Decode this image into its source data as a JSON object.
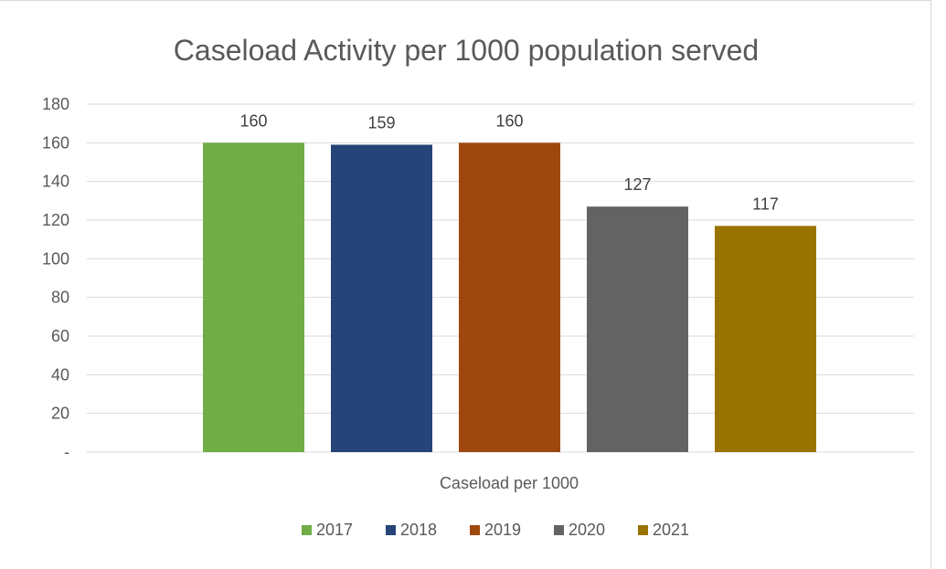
{
  "chart_data": {
    "type": "bar",
    "title": "Caseload Activity per 1000 population served",
    "categories": [
      "Caseload per 1000"
    ],
    "series": [
      {
        "name": "2017",
        "values": [
          160
        ],
        "label": "160",
        "color": "#70AD47"
      },
      {
        "name": "2018",
        "values": [
          159
        ],
        "label": "159",
        "color": "#264478"
      },
      {
        "name": "2019",
        "values": [
          160
        ],
        "label": "160",
        "color": "#9E480E"
      },
      {
        "name": "2020",
        "values": [
          127
        ],
        "label": "127",
        "color": "#636363"
      },
      {
        "name": "2021",
        "values": [
          117
        ],
        "label": "117",
        "color": "#997300"
      }
    ],
    "yticks": [
      {
        "value": 0,
        "label": "-"
      },
      {
        "value": 20,
        "label": "20"
      },
      {
        "value": 40,
        "label": "40"
      },
      {
        "value": 60,
        "label": "60"
      },
      {
        "value": 80,
        "label": "80"
      },
      {
        "value": 100,
        "label": "100"
      },
      {
        "value": 120,
        "label": "120"
      },
      {
        "value": 140,
        "label": "140"
      },
      {
        "value": 160,
        "label": "160"
      },
      {
        "value": 180,
        "label": "180"
      }
    ],
    "ylim": [
      0,
      180
    ],
    "grid": true,
    "legend": "bottom"
  }
}
